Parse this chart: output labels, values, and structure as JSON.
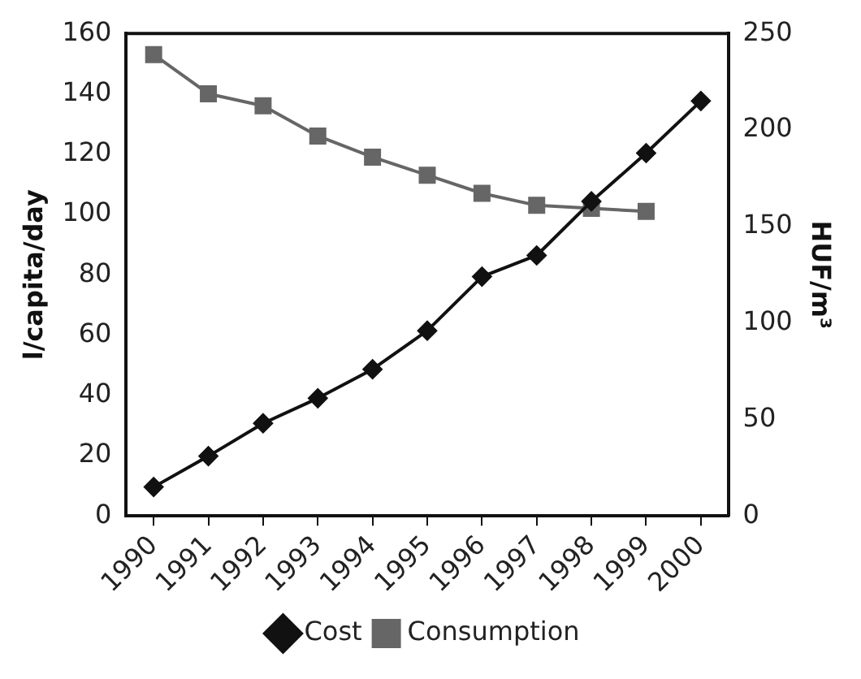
{
  "chart_data": {
    "type": "line",
    "xlabel": null,
    "ylabel": "l/capita/day",
    "y2label": "HUF/m³",
    "categories": [
      "1990",
      "1991",
      "1992",
      "1993",
      "1994",
      "1995",
      "1996",
      "1997",
      "1998",
      "1999",
      "2000"
    ],
    "series": [
      {
        "name": "Consumption",
        "color": "#666666",
        "marker": "square",
        "values": [
          153,
          140,
          136,
          126,
          119,
          113,
          107,
          103,
          102,
          101,
          null
        ]
      },
      {
        "name": "Cost",
        "color": "#111111",
        "marker": "diamond",
        "axis": "y2",
        "values": [
          15,
          31,
          48,
          61,
          76,
          96,
          124,
          135,
          163,
          188,
          215
        ]
      }
    ],
    "ylim": [
      0,
      160
    ],
    "yticks": [
      0,
      20,
      40,
      60,
      80,
      100,
      120,
      140,
      160
    ],
    "y2lim": [
      0,
      250
    ],
    "y2ticks": [
      0,
      50,
      100,
      150,
      200,
      250
    ],
    "grid": false,
    "legend": "bottom",
    "line_style": "solid"
  }
}
